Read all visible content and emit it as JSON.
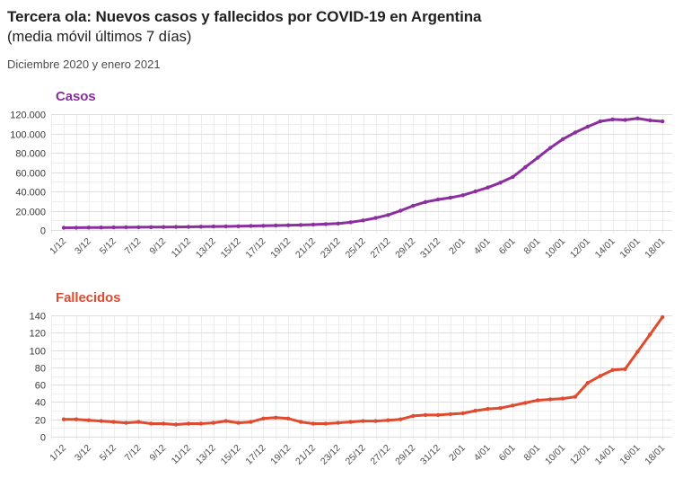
{
  "header": {
    "title": "Tercera ola: Nuevos casos y fallecidos por COVID-19 en Argentina",
    "subtitle": "(media móvil últimos 7 días)",
    "period": "Diciembre 2020 y enero 2021"
  },
  "colors": {
    "cases_accent": "#8b2f9e",
    "deaths_accent": "#e04b2f",
    "grid_major": "#dedede",
    "grid_minor": "#efefef",
    "grid_vertical": "#ededed",
    "y_tick_text": "#3a3a3a",
    "x_tick_text": "#4d4d4d",
    "background": "#ffffff"
  },
  "chart_data": [
    {
      "type": "line",
      "title": "Casos",
      "color": "#8b2f9e",
      "xlabel": "",
      "ylabel": "",
      "ylim": [
        0,
        120000
      ],
      "y_major_step": 20000,
      "y_minor_step": 10000,
      "y_tick_labels": [
        "0",
        "20.000",
        "40.000",
        "60.000",
        "80.000",
        "100.000",
        "120.000"
      ],
      "grid": true,
      "legend": "none",
      "x_tick_every": 2,
      "x": [
        "1/12",
        "2/12",
        "3/12",
        "4/12",
        "5/12",
        "6/12",
        "7/12",
        "8/12",
        "9/12",
        "10/12",
        "11/12",
        "12/12",
        "13/12",
        "14/12",
        "15/12",
        "16/12",
        "17/12",
        "18/12",
        "19/12",
        "20/12",
        "21/12",
        "22/12",
        "23/12",
        "24/12",
        "25/12",
        "26/12",
        "27/12",
        "28/12",
        "29/12",
        "30/12",
        "31/12",
        "1/01",
        "2/01",
        "3/01",
        "4/01",
        "5/01",
        "6/01",
        "7/01",
        "8/01",
        "9/01",
        "10/01",
        "11/01",
        "12/01",
        "13/01",
        "14/01",
        "15/01",
        "16/01",
        "17/01",
        "18/01"
      ],
      "values": [
        2300,
        2400,
        2500,
        2600,
        2700,
        2800,
        2900,
        3000,
        3100,
        3200,
        3300,
        3450,
        3600,
        3750,
        3950,
        4150,
        4400,
        4650,
        4900,
        5200,
        5600,
        6100,
        6700,
        8000,
        10000,
        12500,
        15500,
        20000,
        25000,
        29000,
        31500,
        33500,
        36000,
        40000,
        44000,
        49000,
        55000,
        65000,
        75000,
        85000,
        94000,
        101000,
        107000,
        112500,
        114500,
        114000,
        115500,
        113500,
        112500
      ]
    },
    {
      "type": "line",
      "title": "Fallecidos",
      "color": "#e04b2f",
      "xlabel": "",
      "ylabel": "",
      "ylim": [
        0,
        140
      ],
      "y_major_step": 20,
      "y_minor_step": 10,
      "y_tick_labels": [
        "0",
        "20",
        "40",
        "60",
        "80",
        "100",
        "120",
        "140"
      ],
      "grid": true,
      "legend": "none",
      "x_tick_every": 2,
      "x": [
        "1/12",
        "2/12",
        "3/12",
        "4/12",
        "5/12",
        "6/12",
        "7/12",
        "8/12",
        "9/12",
        "10/12",
        "11/12",
        "12/12",
        "13/12",
        "14/12",
        "15/12",
        "16/12",
        "17/12",
        "18/12",
        "19/12",
        "20/12",
        "21/12",
        "22/12",
        "23/12",
        "24/12",
        "25/12",
        "26/12",
        "27/12",
        "28/12",
        "29/12",
        "30/12",
        "31/12",
        "1/01",
        "2/01",
        "3/01",
        "4/01",
        "5/01",
        "6/01",
        "7/01",
        "8/01",
        "9/01",
        "10/01",
        "11/01",
        "12/01",
        "13/01",
        "14/01",
        "15/01",
        "16/01",
        "17/01",
        "18/01"
      ],
      "values": [
        20,
        20,
        19,
        18,
        17,
        16,
        17,
        15,
        15,
        14,
        15,
        15,
        16,
        18,
        16,
        17,
        21,
        22,
        21,
        17,
        15,
        15,
        16,
        17,
        18,
        18,
        19,
        20,
        24,
        25,
        25,
        26,
        27,
        30,
        32,
        33,
        36,
        39,
        42,
        43,
        44,
        46,
        62,
        70,
        77,
        78,
        98,
        118,
        138
      ]
    }
  ]
}
